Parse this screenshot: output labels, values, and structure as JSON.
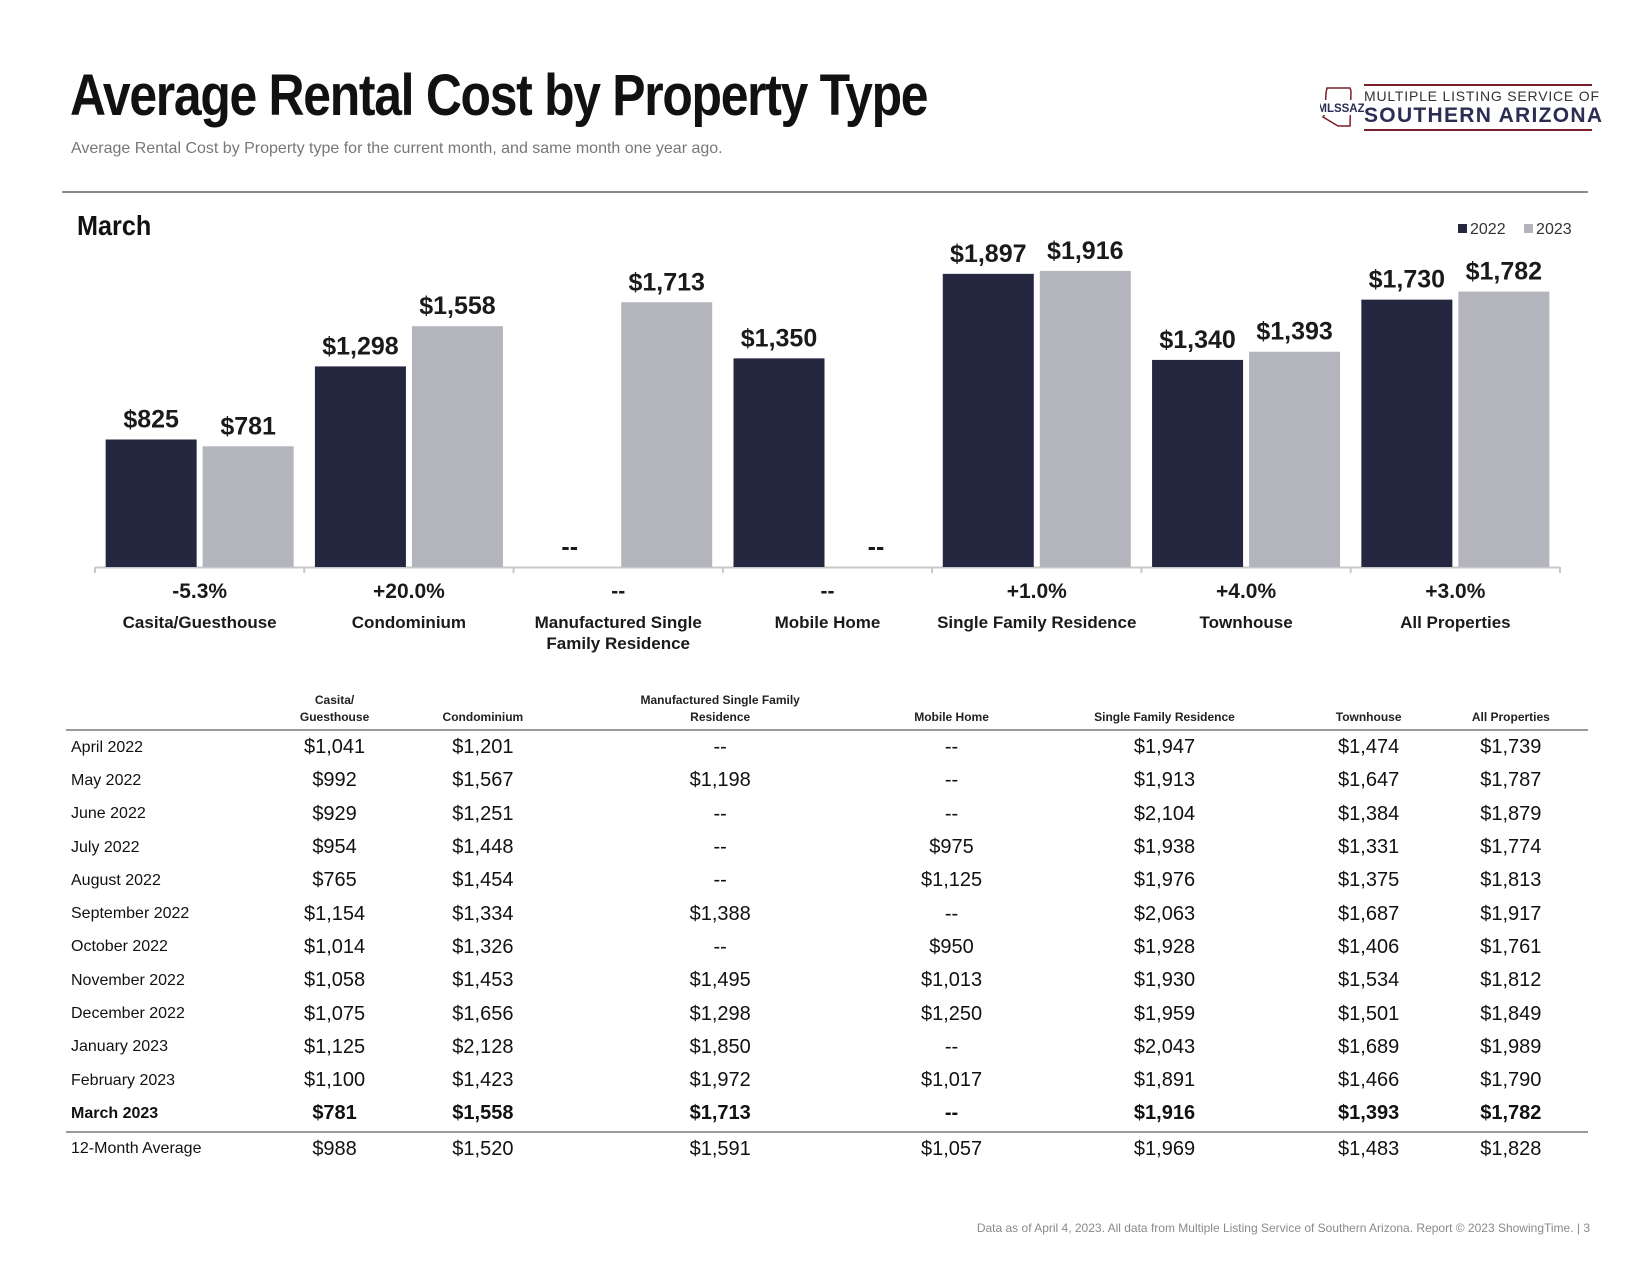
{
  "title": "Average Rental Cost by Property Type",
  "subtitle": "Average Rental Cost by Property type for the current month, and same month one year ago.",
  "logo": {
    "abbr": "MLSSAZ",
    "line1": "MULTIPLE LISTING SERVICE OF",
    "line2": "SOUTHERN ARIZONA"
  },
  "colors": {
    "series_2022": "#25263f",
    "series_2023": "#b4b4bc",
    "axis": "#c8c8c8"
  },
  "chart_data": {
    "type": "bar",
    "title": "March",
    "categories": [
      "Casita/Guesthouse",
      "Condominium",
      "Manufactured Single Family Residence",
      "Mobile Home",
      "Single Family Residence",
      "Townhouse",
      "All Properties"
    ],
    "category_lines": [
      [
        "Casita/Guesthouse"
      ],
      [
        "Condominium"
      ],
      [
        "Manufactured Single",
        "Family Residence"
      ],
      [
        "Mobile Home"
      ],
      [
        "Single Family Residence"
      ],
      [
        "Townhouse"
      ],
      [
        "All Properties"
      ]
    ],
    "series": [
      {
        "name": "2022",
        "values": [
          825,
          1298,
          null,
          1350,
          1897,
          1340,
          1730
        ],
        "labels": [
          "$825",
          "$1,298",
          "--",
          "$1,350",
          "$1,897",
          "$1,340",
          "$1,730"
        ]
      },
      {
        "name": "2023",
        "values": [
          781,
          1558,
          1713,
          null,
          1916,
          1393,
          1782
        ],
        "labels": [
          "$781",
          "$1,558",
          "$1,713",
          "--",
          "$1,916",
          "$1,393",
          "$1,782"
        ]
      }
    ],
    "pct_change": [
      "-5.3%",
      "+20.0%",
      "--",
      "--",
      "+1.0%",
      "+4.0%",
      "+3.0%"
    ],
    "legend": [
      "2022",
      "2023"
    ],
    "legend_position": "top-right",
    "ylim": [
      0,
      2200
    ],
    "grid": false
  },
  "table": {
    "headers": [
      {
        "lines": [
          ""
        ]
      },
      {
        "lines": [
          "Casita/",
          "Guesthouse"
        ]
      },
      {
        "lines": [
          "Condominium"
        ]
      },
      {
        "lines": [
          "Manufactured Single Family",
          "Residence"
        ]
      },
      {
        "lines": [
          "Mobile Home"
        ]
      },
      {
        "lines": [
          "Single Family Residence"
        ]
      },
      {
        "lines": [
          "Townhouse"
        ]
      },
      {
        "lines": [
          "All Properties"
        ]
      }
    ],
    "rows": [
      [
        "April 2022",
        "$1,041",
        "$1,201",
        "--",
        "--",
        "$1,947",
        "$1,474",
        "$1,739"
      ],
      [
        "May 2022",
        "$992",
        "$1,567",
        "$1,198",
        "--",
        "$1,913",
        "$1,647",
        "$1,787"
      ],
      [
        "June 2022",
        "$929",
        "$1,251",
        "--",
        "--",
        "$2,104",
        "$1,384",
        "$1,879"
      ],
      [
        "July 2022",
        "$954",
        "$1,448",
        "--",
        "$975",
        "$1,938",
        "$1,331",
        "$1,774"
      ],
      [
        "August 2022",
        "$765",
        "$1,454",
        "--",
        "$1,125",
        "$1,976",
        "$1,375",
        "$1,813"
      ],
      [
        "September 2022",
        "$1,154",
        "$1,334",
        "$1,388",
        "--",
        "$2,063",
        "$1,687",
        "$1,917"
      ],
      [
        "October 2022",
        "$1,014",
        "$1,326",
        "--",
        "$950",
        "$1,928",
        "$1,406",
        "$1,761"
      ],
      [
        "November 2022",
        "$1,058",
        "$1,453",
        "$1,495",
        "$1,013",
        "$1,930",
        "$1,534",
        "$1,812"
      ],
      [
        "December 2022",
        "$1,075",
        "$1,656",
        "$1,298",
        "$1,250",
        "$1,959",
        "$1,501",
        "$1,849"
      ],
      [
        "January 2023",
        "$1,125",
        "$2,128",
        "$1,850",
        "--",
        "$2,043",
        "$1,689",
        "$1,989"
      ],
      [
        "February 2023",
        "$1,100",
        "$1,423",
        "$1,972",
        "$1,017",
        "$1,891",
        "$1,466",
        "$1,790"
      ],
      [
        "March 2023",
        "$781",
        "$1,558",
        "$1,713",
        "--",
        "$1,916",
        "$1,393",
        "$1,782"
      ],
      [
        "12-Month Average",
        "$988",
        "$1,520",
        "$1,591",
        "$1,057",
        "$1,969",
        "$1,483",
        "$1,828"
      ]
    ],
    "current_row_index": 11
  },
  "footer": "Data as of April 4, 2023. All data from Multiple Listing Service of Southern Arizona. Report © 2023 ShowingTime. | 3"
}
